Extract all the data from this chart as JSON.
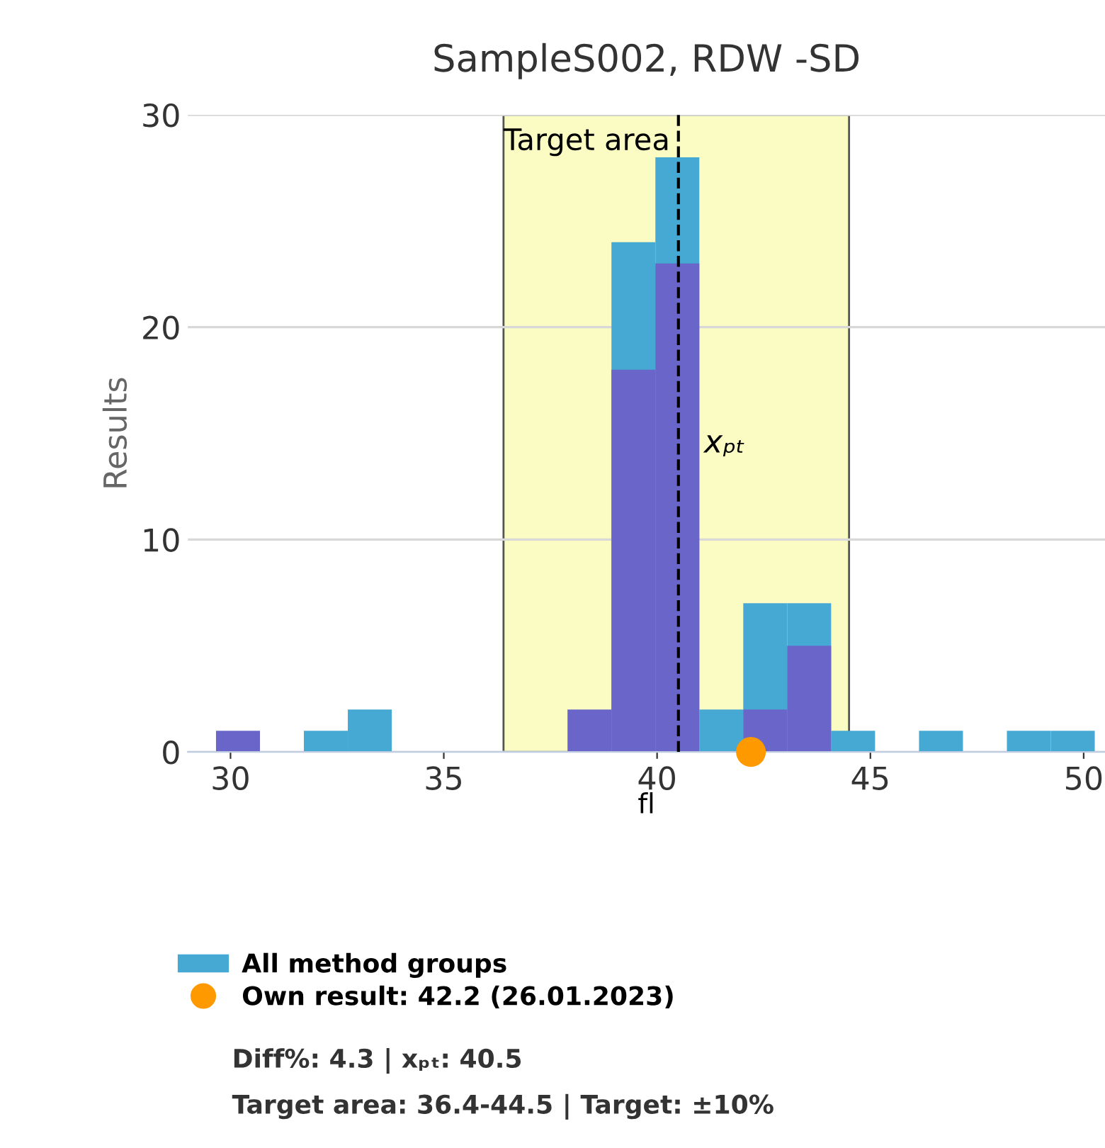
{
  "chart_data": {
    "type": "histogram",
    "title": "SampleS002, RDW -SD",
    "xlabel": "fl",
    "ylabel": "Results",
    "bins": [
      29.66,
      30.69,
      31.72,
      32.75,
      33.78,
      34.81,
      35.84,
      36.87,
      37.9,
      38.93,
      39.96,
      40.99,
      42.02,
      43.05,
      44.08,
      45.11,
      46.14,
      47.17,
      48.2,
      49.23,
      50.26
    ],
    "series": [
      {
        "name": "All method groups",
        "color": "#45a9d3",
        "values": [
          null,
          0,
          1,
          2,
          0,
          0,
          0,
          0,
          null,
          24,
          28,
          2,
          7,
          7,
          1,
          0,
          1,
          0,
          1,
          1
        ]
      },
      {
        "color": "#6a66c9",
        "values": [
          1,
          0,
          0,
          0,
          0,
          0,
          0,
          0,
          2,
          18,
          23,
          0,
          2,
          5,
          0,
          0,
          0,
          0,
          0,
          0
        ]
      },
      {
        "type": "scatter",
        "name": "Own result: 42.2 (26.01.2023)",
        "color": "#ff9900",
        "x": [
          42.2
        ],
        "values": [
          0
        ],
        "marker": "circle"
      }
    ],
    "bands": [
      {
        "axis": "x",
        "from": 36.4,
        "to": 44.5,
        "label": "Target area",
        "color": "#fafcc4"
      }
    ],
    "ref_lines": [
      {
        "axis": "x",
        "value": 40.5,
        "label": "xₚₜ",
        "line_style": "dashed",
        "color": "#000000"
      }
    ],
    "annotations": [
      "Diff%: 4.3 | xₚₜ: 40.5",
      "Target area: 36.4-44.5 | Target: ±10%"
    ],
    "xlim": [
      29,
      50.5
    ],
    "ylim": [
      0,
      30
    ],
    "xticks": [
      30,
      35,
      40,
      45,
      50
    ],
    "yticks": [
      0,
      10,
      20,
      30
    ],
    "grid": "y",
    "legend": "bottom"
  }
}
